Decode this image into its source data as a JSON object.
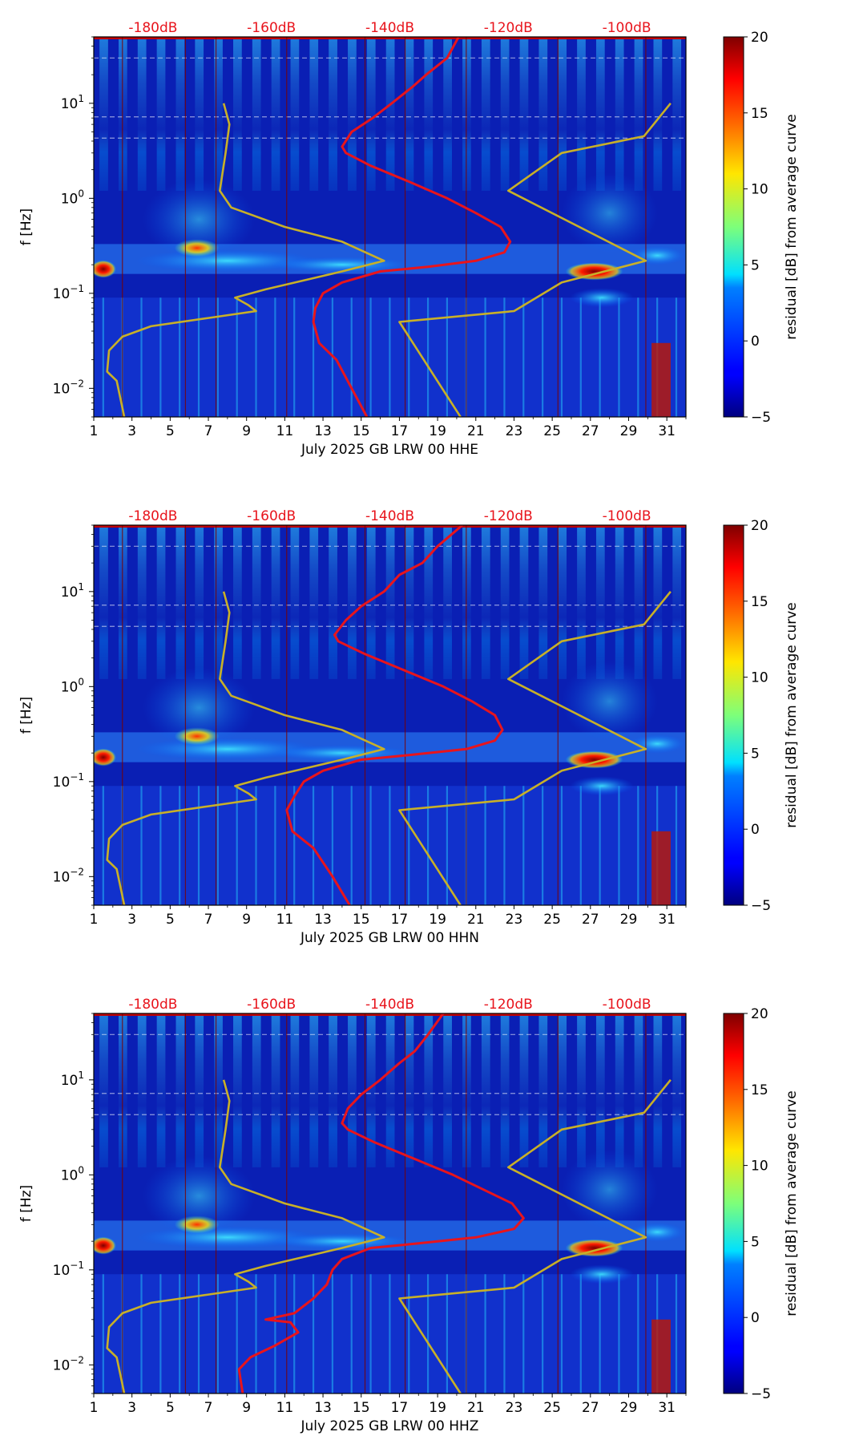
{
  "chart_data": [
    {
      "type": "heatmap",
      "channel": "HHE",
      "xlabel": "July 2025 GB LRW 00 HHE",
      "ylabel": "f [Hz]",
      "colorbar_label": "residual [dB] from average curve",
      "xlim": [
        1,
        32
      ],
      "ylim": [
        0.005,
        50
      ],
      "x_ticks": [
        "1",
        "3",
        "5",
        "7",
        "9",
        "11",
        "13",
        "15",
        "17",
        "19",
        "21",
        "23",
        "25",
        "27",
        "29",
        "31"
      ],
      "y_ticks": [
        {
          "base": "10",
          "exp": "1",
          "value": 10
        },
        {
          "base": "10",
          "exp": "0",
          "value": 1
        },
        {
          "base": "10",
          "exp": "−1",
          "value": 0.1
        },
        {
          "base": "10",
          "exp": "−2",
          "value": 0.01
        }
      ],
      "top_db_labels": [
        {
          "text": "-180dB",
          "x": 4.1
        },
        {
          "text": "-160dB",
          "x": 10.3
        },
        {
          "text": "-140dB",
          "x": 16.5
        },
        {
          "text": "-120dB",
          "x": 22.7
        },
        {
          "text": "-100dB",
          "x": 28.9
        }
      ],
      "colorbar_ticks": [
        "20",
        "15",
        "10",
        "5",
        "0",
        "−5"
      ],
      "colorbar_range": [
        -5,
        20
      ],
      "hot_spots": [
        {
          "day": 1.5,
          "f": 0.18,
          "value": 20
        },
        {
          "day": 6.4,
          "f": 0.3,
          "value": 14
        },
        {
          "day": 27.2,
          "f": 0.17,
          "value": 20
        }
      ],
      "series": [
        {
          "name": "median residual curve",
          "color": "#e8141c",
          "points": [
            [
              20.1,
              50
            ],
            [
              19.5,
              30
            ],
            [
              18.4,
              20
            ],
            [
              17.7,
              15
            ],
            [
              16.6,
              10
            ],
            [
              15.6,
              7
            ],
            [
              14.5,
              5
            ],
            [
              14.0,
              3.5
            ],
            [
              14.2,
              3
            ],
            [
              15.5,
              2.2
            ],
            [
              17.5,
              1.5
            ],
            [
              19.5,
              1.0
            ],
            [
              21.0,
              0.7
            ],
            [
              22.3,
              0.5
            ],
            [
              22.8,
              0.35
            ],
            [
              22.5,
              0.27
            ],
            [
              21.0,
              0.22
            ],
            [
              18.5,
              0.19
            ],
            [
              16.0,
              0.17
            ],
            [
              14.0,
              0.13
            ],
            [
              13.0,
              0.1
            ],
            [
              12.6,
              0.07
            ],
            [
              12.5,
              0.05
            ],
            [
              12.8,
              0.03
            ],
            [
              13.7,
              0.02
            ],
            [
              14.5,
              0.01
            ],
            [
              15.3,
              0.005
            ]
          ]
        },
        {
          "name": "reference curve",
          "color": "#c8b028",
          "points": [
            [
              7.8,
              10
            ],
            [
              8.1,
              6
            ],
            [
              7.9,
              3
            ],
            [
              7.6,
              1.2
            ],
            [
              8.2,
              0.8
            ],
            [
              11.0,
              0.5
            ],
            [
              14.0,
              0.35
            ],
            [
              16.2,
              0.22
            ],
            [
              14.0,
              0.17
            ],
            [
              10.0,
              0.11
            ],
            [
              8.4,
              0.09
            ],
            [
              9.1,
              0.075
            ],
            [
              9.5,
              0.065
            ],
            [
              7.0,
              0.055
            ],
            [
              4.0,
              0.045
            ],
            [
              2.5,
              0.035
            ],
            [
              1.8,
              0.025
            ],
            [
              1.7,
              0.015
            ],
            [
              2.2,
              0.012
            ],
            [
              2.6,
              0.005
            ]
          ]
        },
        {
          "name": "reference curve (upper)",
          "color": "#c8b028",
          "points": [
            [
              31.2,
              10
            ],
            [
              29.8,
              4.5
            ],
            [
              25.5,
              3
            ],
            [
              22.7,
              1.2
            ],
            [
              29.9,
              0.22
            ],
            [
              25.5,
              0.13
            ],
            [
              23.0,
              0.065
            ],
            [
              17.0,
              0.05
            ],
            [
              20.2,
              0.005
            ]
          ]
        }
      ]
    },
    {
      "type": "heatmap",
      "channel": "HHN",
      "xlabel": "July 2025 GB LRW 00 HHN",
      "ylabel": "f [Hz]",
      "colorbar_label": "residual [dB] from average curve",
      "xlim": [
        1,
        32
      ],
      "ylim": [
        0.005,
        50
      ],
      "x_ticks": [
        "1",
        "3",
        "5",
        "7",
        "9",
        "11",
        "13",
        "15",
        "17",
        "19",
        "21",
        "23",
        "25",
        "27",
        "29",
        "31"
      ],
      "y_ticks": [
        {
          "base": "10",
          "exp": "1",
          "value": 10
        },
        {
          "base": "10",
          "exp": "0",
          "value": 1
        },
        {
          "base": "10",
          "exp": "−1",
          "value": 0.1
        },
        {
          "base": "10",
          "exp": "−2",
          "value": 0.01
        }
      ],
      "top_db_labels": [
        {
          "text": "-180dB",
          "x": 4.1
        },
        {
          "text": "-160dB",
          "x": 10.3
        },
        {
          "text": "-140dB",
          "x": 16.5
        },
        {
          "text": "-120dB",
          "x": 22.7
        },
        {
          "text": "-100dB",
          "x": 28.9
        }
      ],
      "colorbar_ticks": [
        "20",
        "15",
        "10",
        "5",
        "0",
        "−5"
      ],
      "colorbar_range": [
        -5,
        20
      ],
      "hot_spots": [
        {
          "day": 1.5,
          "f": 0.18,
          "value": 20
        },
        {
          "day": 6.4,
          "f": 0.3,
          "value": 14
        },
        {
          "day": 27.2,
          "f": 0.17,
          "value": 20
        }
      ],
      "series": [
        {
          "name": "median residual curve",
          "color": "#e8141c",
          "points": [
            [
              20.3,
              50
            ],
            [
              19.0,
              30
            ],
            [
              18.2,
              20
            ],
            [
              17.0,
              15
            ],
            [
              16.2,
              10
            ],
            [
              15.0,
              7
            ],
            [
              14.2,
              5
            ],
            [
              13.6,
              3.5
            ],
            [
              13.8,
              3
            ],
            [
              15.2,
              2.2
            ],
            [
              17.2,
              1.5
            ],
            [
              19.3,
              1.0
            ],
            [
              20.8,
              0.7
            ],
            [
              22.0,
              0.5
            ],
            [
              22.4,
              0.35
            ],
            [
              22.0,
              0.27
            ],
            [
              20.5,
              0.22
            ],
            [
              17.5,
              0.19
            ],
            [
              15.0,
              0.17
            ],
            [
              13.0,
              0.13
            ],
            [
              12.0,
              0.1
            ],
            [
              11.5,
              0.07
            ],
            [
              11.1,
              0.05
            ],
            [
              11.4,
              0.03
            ],
            [
              12.5,
              0.02
            ],
            [
              13.5,
              0.01
            ],
            [
              14.4,
              0.005
            ]
          ]
        },
        {
          "name": "reference curve",
          "color": "#c8b028",
          "points": [
            [
              7.8,
              10
            ],
            [
              8.1,
              6
            ],
            [
              7.9,
              3
            ],
            [
              7.6,
              1.2
            ],
            [
              8.2,
              0.8
            ],
            [
              11.0,
              0.5
            ],
            [
              14.0,
              0.35
            ],
            [
              16.2,
              0.22
            ],
            [
              14.0,
              0.17
            ],
            [
              10.0,
              0.11
            ],
            [
              8.4,
              0.09
            ],
            [
              9.1,
              0.075
            ],
            [
              9.5,
              0.065
            ],
            [
              7.0,
              0.055
            ],
            [
              4.0,
              0.045
            ],
            [
              2.5,
              0.035
            ],
            [
              1.8,
              0.025
            ],
            [
              1.7,
              0.015
            ],
            [
              2.2,
              0.012
            ],
            [
              2.6,
              0.005
            ]
          ]
        },
        {
          "name": "reference curve (upper)",
          "color": "#c8b028",
          "points": [
            [
              31.2,
              10
            ],
            [
              29.8,
              4.5
            ],
            [
              25.5,
              3
            ],
            [
              22.7,
              1.2
            ],
            [
              29.9,
              0.22
            ],
            [
              25.5,
              0.13
            ],
            [
              23.0,
              0.065
            ],
            [
              17.0,
              0.05
            ],
            [
              20.2,
              0.005
            ]
          ]
        }
      ]
    },
    {
      "type": "heatmap",
      "channel": "HHZ",
      "xlabel": "July 2025 GB LRW 00 HHZ",
      "ylabel": "f [Hz]",
      "colorbar_label": "residual [dB] from average curve",
      "xlim": [
        1,
        32
      ],
      "ylim": [
        0.005,
        50
      ],
      "x_ticks": [
        "1",
        "3",
        "5",
        "7",
        "9",
        "11",
        "13",
        "15",
        "17",
        "19",
        "21",
        "23",
        "25",
        "27",
        "29",
        "31"
      ],
      "y_ticks": [
        {
          "base": "10",
          "exp": "1",
          "value": 10
        },
        {
          "base": "10",
          "exp": "0",
          "value": 1
        },
        {
          "base": "10",
          "exp": "−1",
          "value": 0.1
        },
        {
          "base": "10",
          "exp": "−2",
          "value": 0.01
        }
      ],
      "top_db_labels": [
        {
          "text": "-180dB",
          "x": 4.1
        },
        {
          "text": "-160dB",
          "x": 10.3
        },
        {
          "text": "-140dB",
          "x": 16.5
        },
        {
          "text": "-120dB",
          "x": 22.7
        },
        {
          "text": "-100dB",
          "x": 28.9
        }
      ],
      "colorbar_ticks": [
        "20",
        "15",
        "10",
        "5",
        "0",
        "−5"
      ],
      "colorbar_range": [
        -5,
        20
      ],
      "hot_spots": [
        {
          "day": 1.5,
          "f": 0.18,
          "value": 20
        },
        {
          "day": 6.4,
          "f": 0.3,
          "value": 14
        },
        {
          "day": 27.2,
          "f": 0.17,
          "value": 20
        }
      ],
      "series": [
        {
          "name": "median residual curve",
          "color": "#e8141c",
          "points": [
            [
              19.3,
              50
            ],
            [
              18.5,
              30
            ],
            [
              17.8,
              20
            ],
            [
              17.0,
              15
            ],
            [
              16.0,
              10
            ],
            [
              15.0,
              7
            ],
            [
              14.3,
              5
            ],
            [
              14.0,
              3.5
            ],
            [
              14.3,
              3
            ],
            [
              15.7,
              2.2
            ],
            [
              17.7,
              1.5
            ],
            [
              19.8,
              1.0
            ],
            [
              21.4,
              0.7
            ],
            [
              22.9,
              0.5
            ],
            [
              23.5,
              0.35
            ],
            [
              23.0,
              0.27
            ],
            [
              21.0,
              0.22
            ],
            [
              18.0,
              0.19
            ],
            [
              15.5,
              0.17
            ],
            [
              14.0,
              0.13
            ],
            [
              13.5,
              0.1
            ],
            [
              13.2,
              0.07
            ],
            [
              12.5,
              0.05
            ],
            [
              11.5,
              0.035
            ],
            [
              10.0,
              0.03
            ],
            [
              11.3,
              0.028
            ],
            [
              11.7,
              0.022
            ],
            [
              10.5,
              0.016
            ],
            [
              9.2,
              0.012
            ],
            [
              8.6,
              0.009
            ],
            [
              8.8,
              0.005
            ]
          ]
        },
        {
          "name": "reference curve",
          "color": "#c8b028",
          "points": [
            [
              7.8,
              10
            ],
            [
              8.1,
              6
            ],
            [
              7.9,
              3
            ],
            [
              7.6,
              1.2
            ],
            [
              8.2,
              0.8
            ],
            [
              11.0,
              0.5
            ],
            [
              14.0,
              0.35
            ],
            [
              16.2,
              0.22
            ],
            [
              14.0,
              0.17
            ],
            [
              10.0,
              0.11
            ],
            [
              8.4,
              0.09
            ],
            [
              9.1,
              0.075
            ],
            [
              9.5,
              0.065
            ],
            [
              7.0,
              0.055
            ],
            [
              4.0,
              0.045
            ],
            [
              2.5,
              0.035
            ],
            [
              1.8,
              0.025
            ],
            [
              1.7,
              0.015
            ],
            [
              2.2,
              0.012
            ],
            [
              2.6,
              0.005
            ]
          ]
        },
        {
          "name": "reference curve (upper)",
          "color": "#c8b028",
          "points": [
            [
              31.2,
              10
            ],
            [
              29.8,
              4.5
            ],
            [
              25.5,
              3
            ],
            [
              22.7,
              1.2
            ],
            [
              29.9,
              0.22
            ],
            [
              25.5,
              0.13
            ],
            [
              23.0,
              0.065
            ],
            [
              17.0,
              0.05
            ],
            [
              20.2,
              0.005
            ]
          ]
        }
      ]
    }
  ]
}
